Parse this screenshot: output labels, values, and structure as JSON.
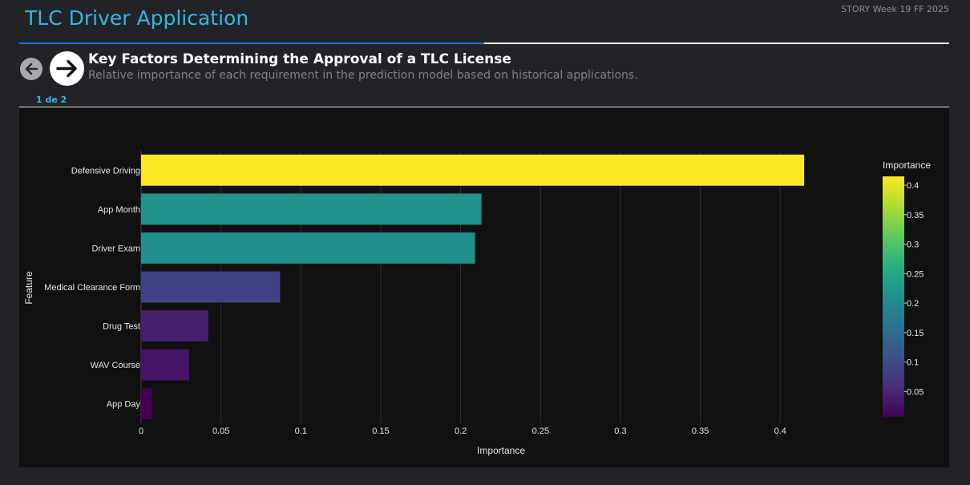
{
  "header": {
    "app_title": "TLC Driver Application",
    "story_tag": "STORY Week 19 FF 2025",
    "progress_fraction": 0.5
  },
  "step": {
    "title": "Key Factors Determining the Approval of a TLC License",
    "subtitle": "Relative importance of each requirement in the prediction model based on historical applications.",
    "pager": "1 de 2"
  },
  "nav": {
    "prev_icon": "arrow-left-icon",
    "next_icon": "arrow-right-icon"
  },
  "chart_data": {
    "type": "bar",
    "orientation": "horizontal",
    "categories": [
      "Defensive Driving",
      "App Month",
      "Driver Exam",
      "Medical Clearance Form",
      "Drug Test",
      "WAV Course",
      "App Day"
    ],
    "values": [
      0.415,
      0.213,
      0.209,
      0.087,
      0.042,
      0.03,
      0.007
    ],
    "xlabel": "Importance",
    "ylabel": "Feature",
    "xlim": [
      0,
      0.435
    ],
    "xticks": [
      0,
      0.05,
      0.1,
      0.15,
      0.2,
      0.25,
      0.3,
      0.35,
      0.4
    ],
    "xtick_labels": [
      "0",
      "0.05",
      "0.1",
      "0.15",
      "0.2",
      "0.25",
      "0.3",
      "0.35",
      "0.4"
    ],
    "grid": "vertical",
    "colorscale": "viridis",
    "colorbar": {
      "title": "Importance",
      "range": [
        0.007,
        0.415
      ],
      "ticks": [
        0.05,
        0.1,
        0.15,
        0.2,
        0.25,
        0.3,
        0.35,
        0.4
      ],
      "tick_labels": [
        "0.05",
        "0.1",
        "0.15",
        "0.2",
        "0.25",
        "0.3",
        "0.35",
        "0.4"
      ],
      "position": "right"
    },
    "colors": {
      "plot_background": "#111111",
      "grid": "#2c2f3a",
      "text": "#e6e6e6"
    }
  }
}
